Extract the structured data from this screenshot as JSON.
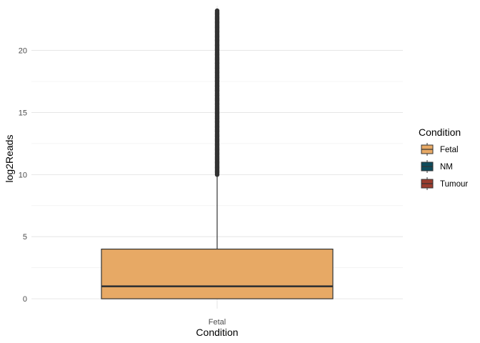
{
  "chart_data": {
    "type": "boxplot",
    "xlabel": "Condition",
    "ylabel": "log2Reads",
    "categories": [
      "Fetal"
    ],
    "ylim": [
      -0.8,
      23.6
    ],
    "yticks": [
      0,
      5,
      10,
      15,
      20
    ],
    "ytick_labels": [
      "0",
      "5",
      "10",
      "15",
      "20"
    ],
    "grid": true,
    "legend_position": "right",
    "boxes": [
      {
        "category": "Fetal",
        "min": 0,
        "q1": 0,
        "median": 1,
        "q3": 4,
        "whisker_high": 10,
        "outlier_range": [
          10,
          23.2
        ],
        "fill": "#E7A965"
      }
    ],
    "legend": {
      "title": "Condition",
      "items": [
        {
          "label": "Fetal",
          "color": "#E7A965"
        },
        {
          "label": "NM",
          "color": "#0F4C5C"
        },
        {
          "label": "Tumour",
          "color": "#9B3D2E"
        }
      ]
    }
  }
}
